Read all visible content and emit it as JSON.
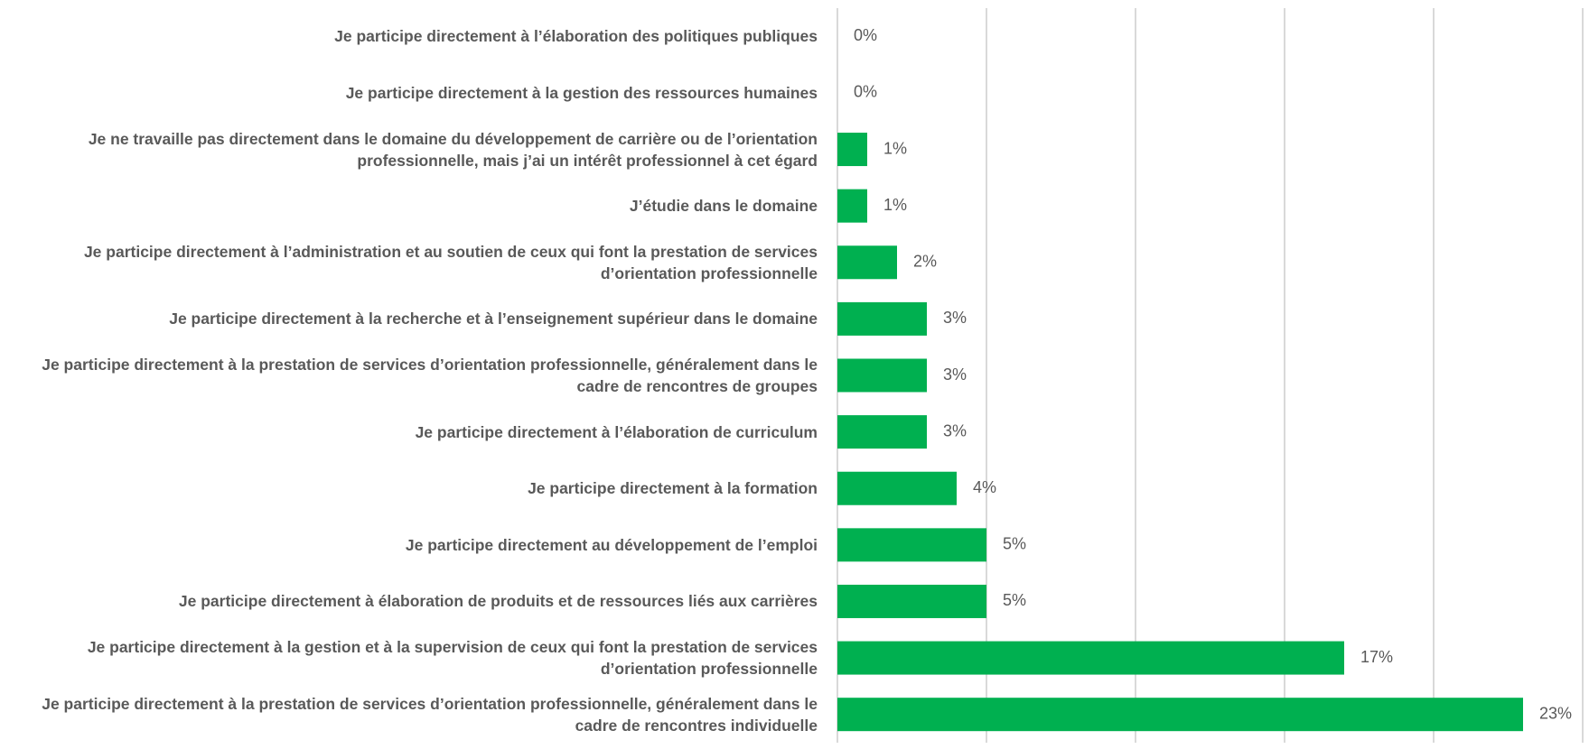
{
  "chart_data": {
    "type": "barh",
    "categories": [
      "Je participe directement à l’élaboration des politiques publiques",
      "Je participe directement à la gestion des ressources humaines",
      "Je ne travaille pas directement dans le domaine du développement de carrière ou de l’orientation professionnelle, mais j’ai un intérêt professionnel à cet égard",
      "J’étudie dans le domaine",
      "Je participe directement à l’administration et au soutien de ceux qui font la prestation de services d’orientation professionnelle",
      "Je participe directement à la recherche et à l’enseignement supérieur dans le domaine",
      "Je participe directement à la prestation de services d’orientation professionnelle, généralement dans le cadre de rencontres de groupes",
      "Je participe directement à l’élaboration de curriculum",
      "Je participe directement à la formation",
      "Je participe directement au développement de l’emploi",
      "Je participe directement à élaboration de produits et de ressources liés aux carrières",
      "Je participe directement à la gestion et à la supervision de ceux qui font la prestation de services d’orientation professionnelle",
      "Je participe directement à la prestation de services d’orientation professionnelle, généralement dans le cadre de rencontres individuelle"
    ],
    "values": [
      0,
      0,
      1,
      1,
      2,
      3,
      3,
      3,
      4,
      5,
      5,
      17,
      23
    ],
    "value_labels": [
      "0%",
      "0%",
      "1%",
      "1%",
      "2%",
      "3%",
      "3%",
      "3%",
      "4%",
      "5%",
      "5%",
      "17%",
      "23%"
    ],
    "color": "#00b050",
    "xlim": [
      0,
      25
    ],
    "xticks": [
      0,
      5,
      10,
      15,
      20,
      25
    ],
    "grid": true
  }
}
